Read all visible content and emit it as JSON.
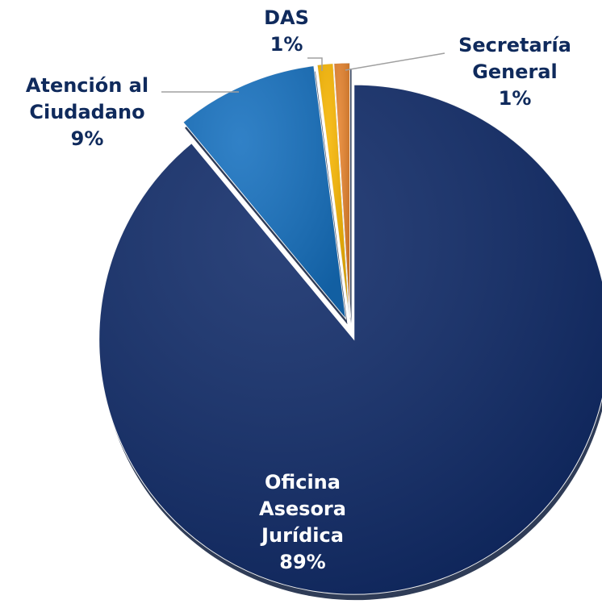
{
  "chart_data": {
    "type": "pie",
    "categories": [
      "Oficina Asesora Jurídica",
      "Atención al Ciudadano",
      "DAS",
      "Secretaría General"
    ],
    "values": [
      89,
      9,
      1,
      1
    ],
    "value_labels": [
      "89%",
      "9%",
      "1%",
      "1%"
    ],
    "colors": [
      "#0f2a68",
      "#1570bf",
      "#f7b500",
      "#e5822c"
    ]
  }
}
